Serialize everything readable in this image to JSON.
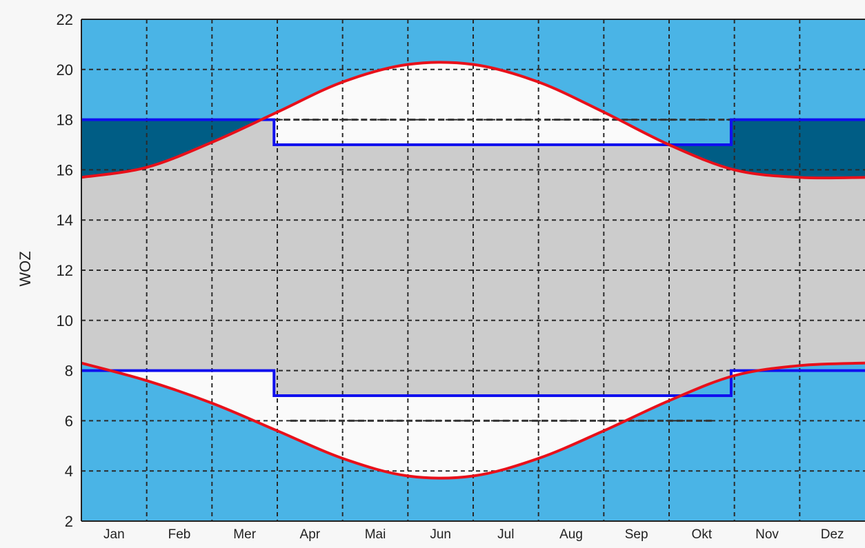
{
  "chart_data": {
    "type": "area",
    "title": "",
    "xlabel": "",
    "ylabel": "WOZ",
    "categories": [
      "Jan",
      "Feb",
      "Mer",
      "Apr",
      "Mai",
      "Jun",
      "Jul",
      "Aug",
      "Sep",
      "Okt",
      "Nov",
      "Dez"
    ],
    "ylim": [
      2,
      22
    ],
    "yticks": [
      2,
      4,
      6,
      8,
      10,
      12,
      14,
      16,
      18,
      20,
      22
    ],
    "grid": true,
    "xlim": [
      0,
      12
    ],
    "series": [
      {
        "role": "upper-curve",
        "color": "#e8101a",
        "x": [
          0,
          1,
          2,
          3,
          4,
          5,
          6,
          7,
          8,
          9,
          10,
          11,
          12
        ],
        "y": [
          15.7,
          16.1,
          17.1,
          18.3,
          19.5,
          20.2,
          20.2,
          19.5,
          18.3,
          17.0,
          16.0,
          15.7,
          15.7
        ]
      },
      {
        "role": "lower-curve",
        "color": "#e8101a",
        "x": [
          0,
          1,
          2,
          3,
          4,
          5,
          6,
          7,
          8,
          9,
          10,
          11,
          12
        ],
        "y": [
          8.3,
          7.6,
          6.7,
          5.6,
          4.5,
          3.8,
          3.8,
          4.5,
          5.6,
          6.8,
          7.8,
          8.2,
          8.3
        ]
      },
      {
        "role": "upper-step",
        "color": "#1010ee",
        "x": [
          0,
          2.95,
          2.95,
          9.95,
          9.95,
          12
        ],
        "y": [
          18,
          18,
          17,
          17,
          18,
          18
        ]
      },
      {
        "role": "lower-step",
        "color": "#1010ee",
        "x": [
          0,
          2.95,
          2.95,
          9.95,
          9.95,
          12
        ],
        "y": [
          8,
          8,
          7,
          7,
          8,
          8
        ]
      }
    ],
    "reference_lines": [
      {
        "y": 18,
        "x_range": [
          2.95,
          9.95
        ]
      },
      {
        "y": 6,
        "x_range": [
          3.2,
          9.7
        ]
      }
    ],
    "colors": {
      "outer_band": "#4ab4e6",
      "dark_band": "#005d85",
      "inner_band": "#cccccc",
      "between_band": "#fafafa",
      "grid": "#2a2a2a"
    }
  }
}
